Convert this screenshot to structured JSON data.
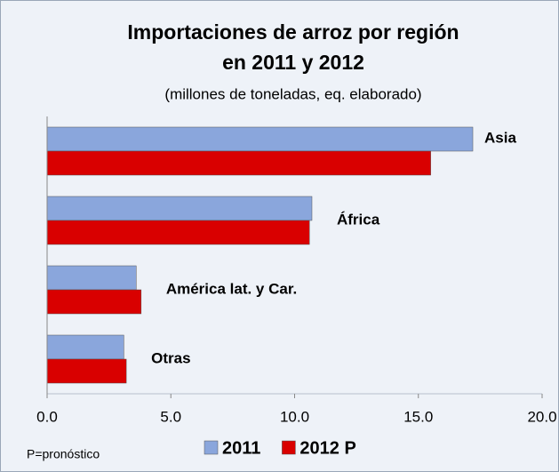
{
  "chart_data": {
    "type": "bar",
    "orientation": "horizontal",
    "title": [
      "Importaciones de arroz por región",
      "en 2011 y 2012"
    ],
    "subtitle": "(millones de toneladas, eq. elaborado)",
    "note": "P=pronóstico",
    "categories": [
      "Asia",
      "África",
      "América lat. y Car.",
      "Otras"
    ],
    "series": [
      {
        "name": "2011",
        "color": "#8aa6dc",
        "values": [
          17.2,
          10.7,
          3.6,
          3.1
        ]
      },
      {
        "name": "2012 P",
        "color": "#d90000",
        "values": [
          15.5,
          10.6,
          3.8,
          3.2
        ]
      }
    ],
    "xlim": [
      0,
      20
    ],
    "xticks": [
      {
        "value": 0,
        "label": "0.0"
      },
      {
        "value": 5,
        "label": "5.0"
      },
      {
        "value": 10,
        "label": "10.0"
      },
      {
        "value": 15,
        "label": "15.0"
      },
      {
        "value": 20,
        "label": "20.0"
      }
    ],
    "grid": false
  }
}
